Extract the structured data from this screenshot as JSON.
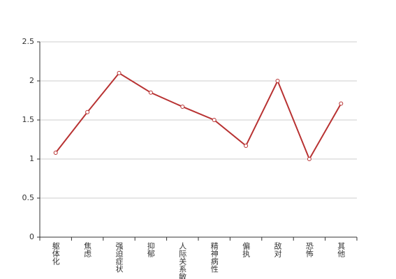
{
  "chart_data": {
    "type": "line",
    "categories": [
      "躯体化",
      "焦虑",
      "强迫症状",
      "抑郁",
      "人际关系敏感",
      "精神病性",
      "偏执",
      "敌对",
      "恐怖",
      "其他"
    ],
    "values": [
      1.08,
      1.6,
      2.1,
      1.85,
      1.67,
      1.5,
      1.17,
      2.0,
      1.0,
      1.71
    ],
    "color": "#b83232",
    "ylim": [
      0,
      2.5
    ],
    "yticks": [
      0,
      0.5,
      1,
      1.5,
      2,
      2.5
    ],
    "grid": true
  }
}
